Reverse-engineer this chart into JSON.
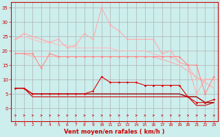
{
  "xlabel": "Vent moyen/en rafales ( km/h )",
  "bg_color": "#cceeed",
  "grid_color": "#b0b0b0",
  "hours": [
    0,
    1,
    2,
    3,
    4,
    5,
    6,
    7,
    8,
    9,
    10,
    11,
    12,
    13,
    14,
    15,
    16,
    17,
    18,
    19,
    20,
    21,
    22,
    23
  ],
  "line_pale1": [
    24,
    26,
    25,
    24,
    23,
    24,
    21,
    22,
    26,
    24,
    35,
    29,
    27,
    24,
    24,
    24,
    24,
    19,
    20,
    16,
    15,
    5,
    10,
    10
  ],
  "line_pale2": [
    24,
    25,
    24,
    23,
    23,
    22,
    22,
    21,
    21,
    21,
    21,
    21,
    20,
    20,
    20,
    20,
    19,
    18,
    18,
    16,
    15,
    10,
    10,
    10
  ],
  "line_med1": [
    19,
    19,
    19,
    14,
    19,
    18,
    18,
    18,
    18,
    18,
    18,
    18,
    18,
    18,
    18,
    18,
    18,
    18,
    18,
    18,
    15,
    15,
    5,
    11
  ],
  "line_med2": [
    19,
    19,
    18,
    18,
    18,
    18,
    18,
    18,
    18,
    18,
    18,
    18,
    18,
    18,
    18,
    18,
    18,
    17,
    16,
    15,
    13,
    11,
    9,
    7
  ],
  "line_dark1": [
    7,
    7,
    5,
    5,
    5,
    5,
    5,
    5,
    5,
    6,
    11,
    9,
    9,
    9,
    9,
    8,
    8,
    8,
    8,
    8,
    4,
    2,
    2,
    3
  ],
  "line_dark2": [
    7,
    7,
    5,
    5,
    5,
    5,
    5,
    5,
    5,
    5,
    5,
    5,
    5,
    5,
    5,
    5,
    5,
    5,
    5,
    5,
    4,
    4,
    2,
    2
  ],
  "line_dark3": [
    7,
    7,
    4,
    4,
    4,
    4,
    4,
    4,
    4,
    4,
    4,
    4,
    4,
    4,
    4,
    4,
    4,
    4,
    4,
    4,
    4,
    1,
    1,
    2
  ],
  "ylim": [
    -4.5,
    37
  ],
  "yticks": [
    0,
    5,
    10,
    15,
    20,
    25,
    30,
    35
  ],
  "tick_color": "#cc0000",
  "line_pale1_color": "#ffaaaa",
  "line_pale2_color": "#ffbbbb",
  "line_med1_color": "#ff8888",
  "line_med2_color": "#ffaaaa",
  "line_dark1_color": "#dd0000",
  "line_dark2_color": "#990000",
  "line_dark3_color": "#cc0000",
  "arrow_color": "#cc2222",
  "spine_color": "#cc0000"
}
